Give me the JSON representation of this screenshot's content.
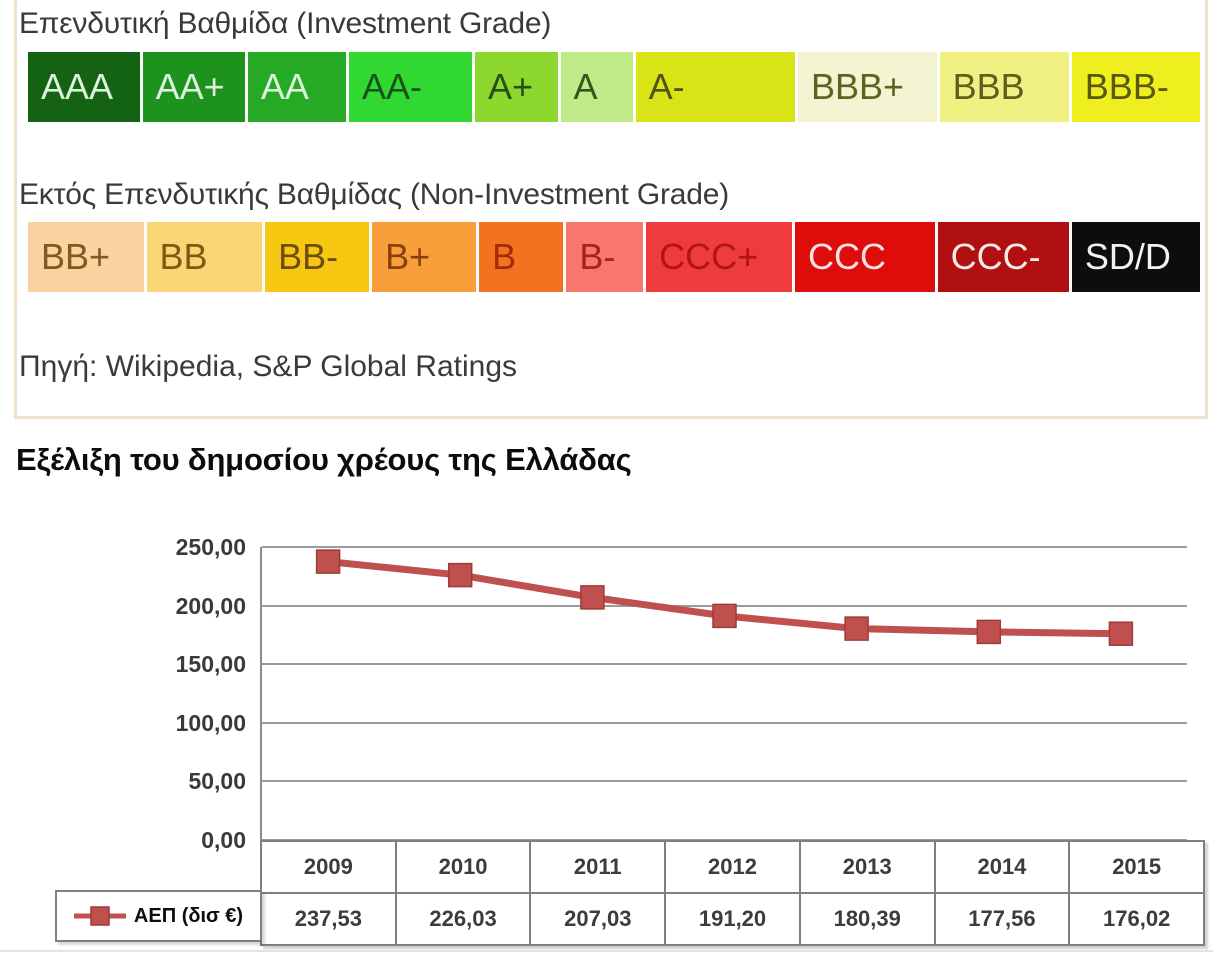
{
  "ratings_box": {
    "investment": {
      "title": "Επενδυτική Βαθμίδα (Investment Grade)",
      "cells": [
        {
          "label": "AAA",
          "bg": "#136313",
          "fg": "#ddf2dd",
          "w": 9.5
        },
        {
          "label": "AA+",
          "bg": "#1d921d",
          "fg": "#ddf2dd",
          "w": 8.6
        },
        {
          "label": "AA",
          "bg": "#26aa26",
          "fg": "#dcf4dc",
          "w": 8.2
        },
        {
          "label": "AA-",
          "bg": "#31d831",
          "fg": "#175417",
          "w": 10.6
        },
        {
          "label": "A+",
          "bg": "#8ed72f",
          "fg": "#275016",
          "w": 6.7
        },
        {
          "label": "A",
          "bg": "#c0e987",
          "fg": "#36551c",
          "w": 5.7
        },
        {
          "label": "A-",
          "bg": "#d9e417",
          "fg": "#4d5414",
          "w": 14.1
        },
        {
          "label": "BBB+",
          "bg": "#f4f4d2",
          "fg": "#62621f",
          "w": 12.1
        },
        {
          "label": "BBB",
          "bg": "#f1f183",
          "fg": "#5f5f1d",
          "w": 11.2
        },
        {
          "label": "BBB-",
          "bg": "#efef1f",
          "fg": "#585810",
          "w": 11.1
        }
      ]
    },
    "non_investment": {
      "title": "Εκτός Επενδυτικής Βαθμίδας (Non-Investment Grade)",
      "cells": [
        {
          "label": "BB+",
          "bg": "#f9d2a0",
          "fg": "#7e5a1e",
          "w": 9.8
        },
        {
          "label": "BB",
          "bg": "#fbd573",
          "fg": "#7c5a14",
          "w": 9.8
        },
        {
          "label": "BB-",
          "bg": "#f7c712",
          "fg": "#6e4c0d",
          "w": 8.7
        },
        {
          "label": "B+",
          "bg": "#f89e3a",
          "fg": "#8a400d",
          "w": 8.7
        },
        {
          "label": "B",
          "bg": "#f4711f",
          "fg": "#a72a08",
          "w": 6.8
        },
        {
          "label": "B-",
          "bg": "#f7776f",
          "fg": "#ab1f1f",
          "w": 6.1
        },
        {
          "label": "CCC+",
          "bg": "#ef3b3b",
          "fg": "#b01414",
          "w": 12.7
        },
        {
          "label": "CCC",
          "bg": "#df0c0c",
          "fg": "#f7e3e3",
          "w": 12.1
        },
        {
          "label": "CCC-",
          "bg": "#b01010",
          "fg": "#f5eaea",
          "w": 11.3
        },
        {
          "label": "SD/D",
          "bg": "#0d0d0d",
          "fg": "#f2f2f2",
          "w": 11.0
        }
      ]
    },
    "source": "Πηγή: Wikipedia, S&P Global Ratings"
  },
  "section_title": "Εξέλιξη του δημοσίου χρέους της Ελλάδας",
  "chart_data": {
    "type": "line",
    "title": "Εξέλιξη του δημοσίου χρέους της Ελλάδας",
    "categories": [
      "2009",
      "2010",
      "2011",
      "2012",
      "2013",
      "2014",
      "2015"
    ],
    "series": [
      {
        "name": "ΑΕΠ (δισ €)",
        "values": [
          237.53,
          226.03,
          207.03,
          191.2,
          180.39,
          177.56,
          176.02
        ],
        "value_labels": [
          "237,53",
          "226,03",
          "207,03",
          "191,20",
          "180,39",
          "177,56",
          "176,02"
        ]
      }
    ],
    "y_tick_labels": [
      "250,00",
      "200,00",
      "150,00",
      "100,00",
      "50,00",
      "0,00"
    ],
    "ylim": [
      0,
      250
    ],
    "grid": true,
    "line_color": "#c0504d",
    "marker": "square",
    "marker_edge_color": "#9c3c38",
    "legend_position": "table-left",
    "data_table_shown": true
  }
}
